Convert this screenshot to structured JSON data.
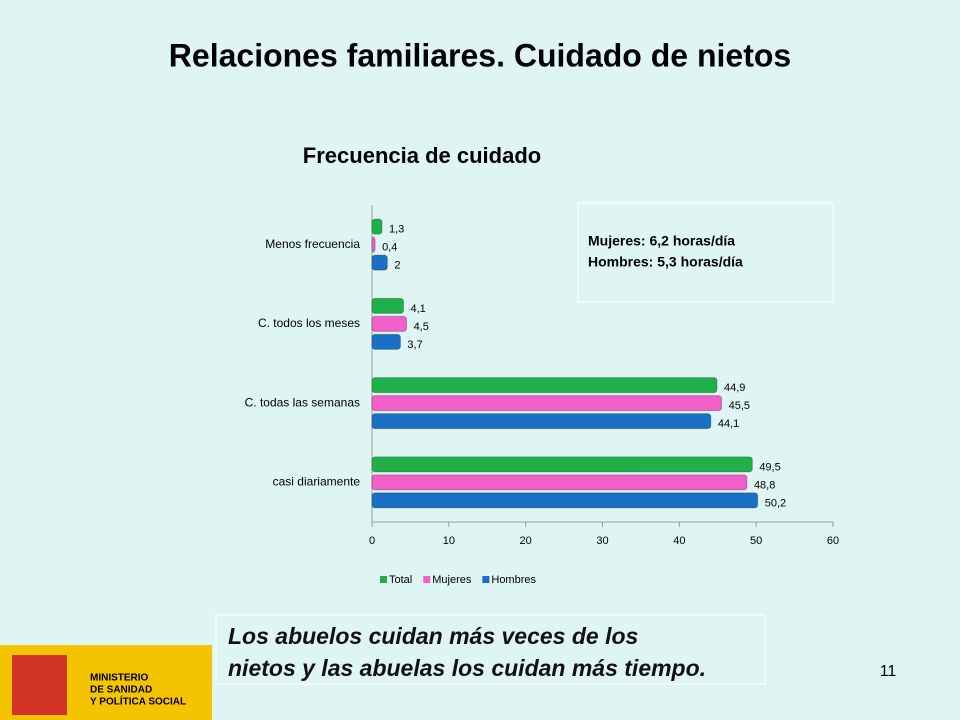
{
  "slide_title": "Relaciones familiares. Cuidado de nietos",
  "chart_data": {
    "type": "bar",
    "orientation": "horizontal",
    "title": "Frecuencia  de cuidado",
    "categories": [
      "Menos frecuencia",
      "C. todos los meses",
      "C. todas las semanas",
      "casi diariamente"
    ],
    "series": [
      {
        "name": "Total",
        "color": "#1fb04a",
        "values": [
          1.3,
          4.1,
          44.9,
          49.5
        ],
        "value_labels": [
          "1,3",
          "4,1",
          "44,9",
          "49,5"
        ]
      },
      {
        "name": "Mujeres",
        "color": "#f25fc8",
        "values": [
          0.4,
          4.5,
          45.5,
          48.8
        ],
        "value_labels": [
          "0,4",
          "4,5",
          "45,5",
          "48,8"
        ]
      },
      {
        "name": "Hombres",
        "color": "#1b6fc4",
        "values": [
          2,
          3.7,
          44.1,
          50.2
        ],
        "value_labels": [
          "2",
          "3,7",
          "44,1",
          "50,2"
        ]
      }
    ],
    "xlim": [
      0,
      60
    ],
    "xticks": [
      0,
      10,
      20,
      30,
      40,
      50,
      60
    ],
    "grid": false,
    "legend": "bottom"
  },
  "note_box": [
    "Mujeres:  6,2 horas/día",
    "Hombres: 5,3 horas/día"
  ],
  "caption": "Los abuelos cuidan más veces de los nietos y las abuelas los cuidan más tiempo.",
  "page_number": "11",
  "logo": [
    "MINISTERIO",
    "DE SANIDAD",
    "Y POLÍTICA SOCIAL"
  ]
}
